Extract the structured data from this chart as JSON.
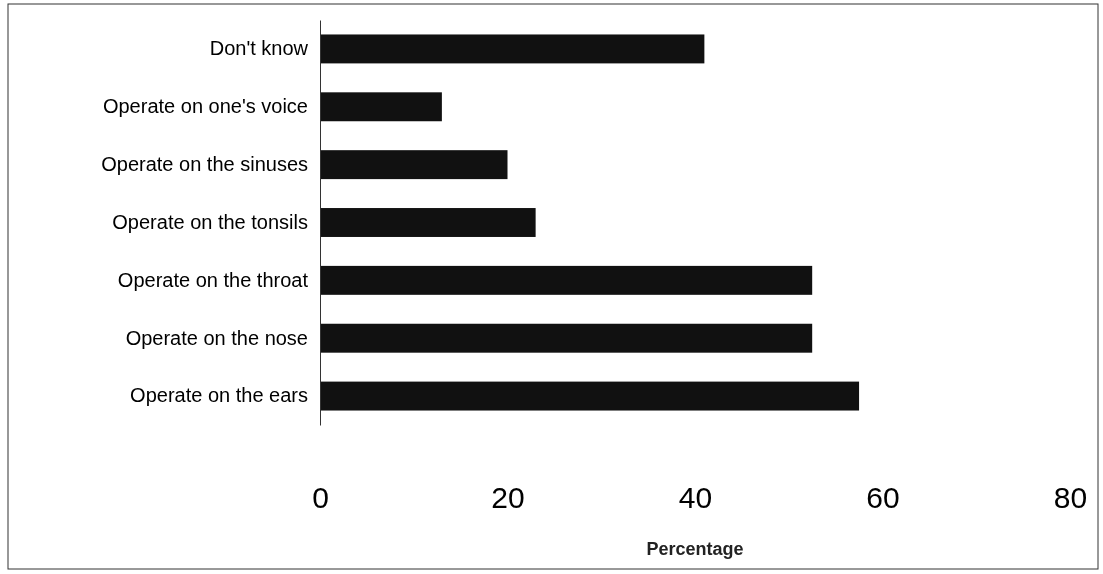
{
  "chart_data": {
    "type": "bar",
    "orientation": "horizontal",
    "categories": [
      "Don't know",
      "Operate on one's voice",
      "Operate on the sinuses",
      "Operate on the tonsils",
      "Operate on the throat",
      "Operate on the nose",
      "Operate on the ears"
    ],
    "values": [
      41,
      13,
      20,
      23,
      52.5,
      52.5,
      57.5
    ],
    "color": "#111111",
    "xlim": [
      0,
      80
    ],
    "xticks": [
      0,
      20,
      40,
      60,
      80
    ],
    "xlabel": "Percentage",
    "grid": false
  }
}
